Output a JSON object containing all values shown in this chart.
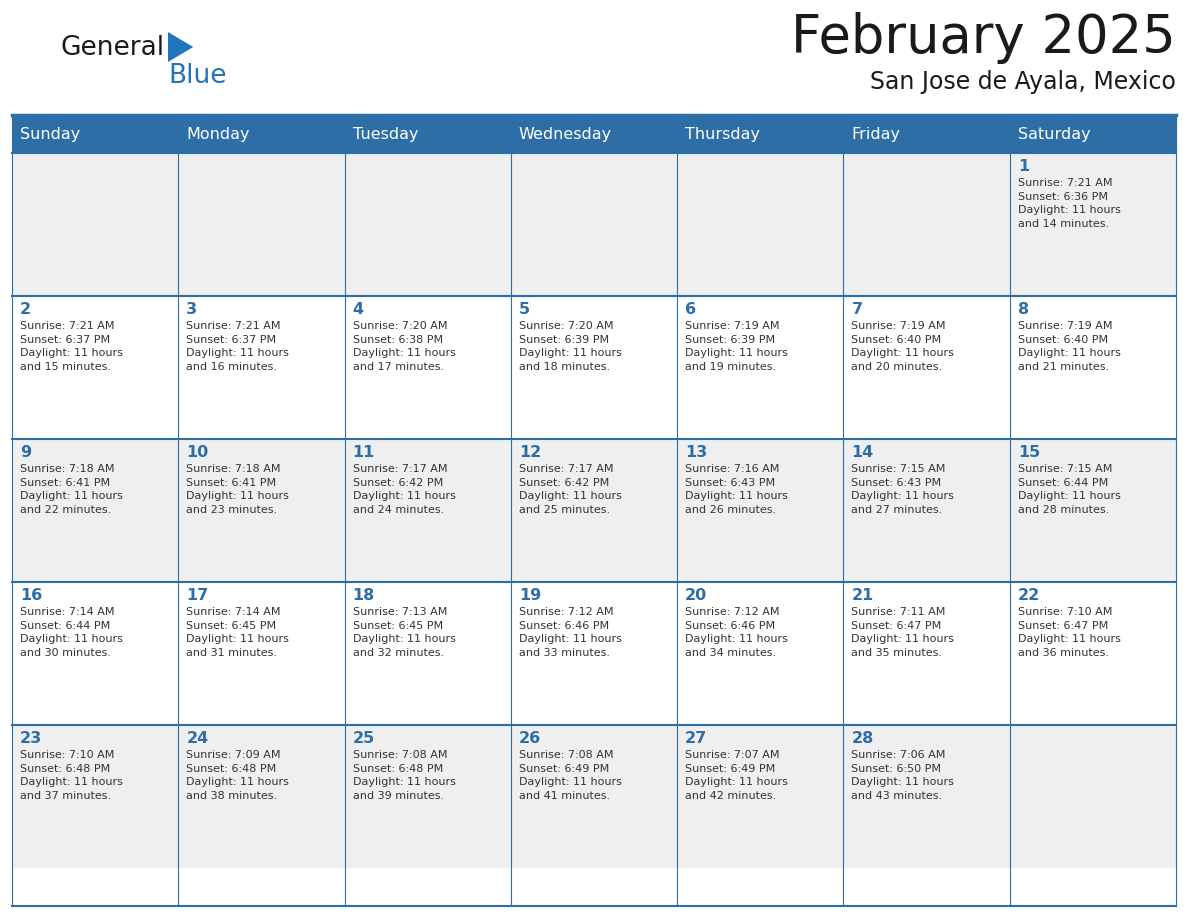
{
  "title": "February 2025",
  "subtitle": "San Jose de Ayala, Mexico",
  "header_bg_color": "#2E6EA6",
  "header_text_color": "#FFFFFF",
  "cell_bg_odd": "#EFEFEF",
  "cell_bg_even": "#FFFFFF",
  "day_number_color": "#2E6EA6",
  "cell_text_color": "#333333",
  "grid_line_color": "#2E6EA6",
  "days_of_week": [
    "Sunday",
    "Monday",
    "Tuesday",
    "Wednesday",
    "Thursday",
    "Friday",
    "Saturday"
  ],
  "weeks": [
    [
      {
        "day": 0,
        "text": ""
      },
      {
        "day": 0,
        "text": ""
      },
      {
        "day": 0,
        "text": ""
      },
      {
        "day": 0,
        "text": ""
      },
      {
        "day": 0,
        "text": ""
      },
      {
        "day": 0,
        "text": ""
      },
      {
        "day": 1,
        "text": "Sunrise: 7:21 AM\nSunset: 6:36 PM\nDaylight: 11 hours\nand 14 minutes."
      }
    ],
    [
      {
        "day": 2,
        "text": "Sunrise: 7:21 AM\nSunset: 6:37 PM\nDaylight: 11 hours\nand 15 minutes."
      },
      {
        "day": 3,
        "text": "Sunrise: 7:21 AM\nSunset: 6:37 PM\nDaylight: 11 hours\nand 16 minutes."
      },
      {
        "day": 4,
        "text": "Sunrise: 7:20 AM\nSunset: 6:38 PM\nDaylight: 11 hours\nand 17 minutes."
      },
      {
        "day": 5,
        "text": "Sunrise: 7:20 AM\nSunset: 6:39 PM\nDaylight: 11 hours\nand 18 minutes."
      },
      {
        "day": 6,
        "text": "Sunrise: 7:19 AM\nSunset: 6:39 PM\nDaylight: 11 hours\nand 19 minutes."
      },
      {
        "day": 7,
        "text": "Sunrise: 7:19 AM\nSunset: 6:40 PM\nDaylight: 11 hours\nand 20 minutes."
      },
      {
        "day": 8,
        "text": "Sunrise: 7:19 AM\nSunset: 6:40 PM\nDaylight: 11 hours\nand 21 minutes."
      }
    ],
    [
      {
        "day": 9,
        "text": "Sunrise: 7:18 AM\nSunset: 6:41 PM\nDaylight: 11 hours\nand 22 minutes."
      },
      {
        "day": 10,
        "text": "Sunrise: 7:18 AM\nSunset: 6:41 PM\nDaylight: 11 hours\nand 23 minutes."
      },
      {
        "day": 11,
        "text": "Sunrise: 7:17 AM\nSunset: 6:42 PM\nDaylight: 11 hours\nand 24 minutes."
      },
      {
        "day": 12,
        "text": "Sunrise: 7:17 AM\nSunset: 6:42 PM\nDaylight: 11 hours\nand 25 minutes."
      },
      {
        "day": 13,
        "text": "Sunrise: 7:16 AM\nSunset: 6:43 PM\nDaylight: 11 hours\nand 26 minutes."
      },
      {
        "day": 14,
        "text": "Sunrise: 7:15 AM\nSunset: 6:43 PM\nDaylight: 11 hours\nand 27 minutes."
      },
      {
        "day": 15,
        "text": "Sunrise: 7:15 AM\nSunset: 6:44 PM\nDaylight: 11 hours\nand 28 minutes."
      }
    ],
    [
      {
        "day": 16,
        "text": "Sunrise: 7:14 AM\nSunset: 6:44 PM\nDaylight: 11 hours\nand 30 minutes."
      },
      {
        "day": 17,
        "text": "Sunrise: 7:14 AM\nSunset: 6:45 PM\nDaylight: 11 hours\nand 31 minutes."
      },
      {
        "day": 18,
        "text": "Sunrise: 7:13 AM\nSunset: 6:45 PM\nDaylight: 11 hours\nand 32 minutes."
      },
      {
        "day": 19,
        "text": "Sunrise: 7:12 AM\nSunset: 6:46 PM\nDaylight: 11 hours\nand 33 minutes."
      },
      {
        "day": 20,
        "text": "Sunrise: 7:12 AM\nSunset: 6:46 PM\nDaylight: 11 hours\nand 34 minutes."
      },
      {
        "day": 21,
        "text": "Sunrise: 7:11 AM\nSunset: 6:47 PM\nDaylight: 11 hours\nand 35 minutes."
      },
      {
        "day": 22,
        "text": "Sunrise: 7:10 AM\nSunset: 6:47 PM\nDaylight: 11 hours\nand 36 minutes."
      }
    ],
    [
      {
        "day": 23,
        "text": "Sunrise: 7:10 AM\nSunset: 6:48 PM\nDaylight: 11 hours\nand 37 minutes."
      },
      {
        "day": 24,
        "text": "Sunrise: 7:09 AM\nSunset: 6:48 PM\nDaylight: 11 hours\nand 38 minutes."
      },
      {
        "day": 25,
        "text": "Sunrise: 7:08 AM\nSunset: 6:48 PM\nDaylight: 11 hours\nand 39 minutes."
      },
      {
        "day": 26,
        "text": "Sunrise: 7:08 AM\nSunset: 6:49 PM\nDaylight: 11 hours\nand 41 minutes."
      },
      {
        "day": 27,
        "text": "Sunrise: 7:07 AM\nSunset: 6:49 PM\nDaylight: 11 hours\nand 42 minutes."
      },
      {
        "day": 28,
        "text": "Sunrise: 7:06 AM\nSunset: 6:50 PM\nDaylight: 11 hours\nand 43 minutes."
      },
      {
        "day": 0,
        "text": ""
      }
    ]
  ],
  "logo_general_color": "#1a1a1a",
  "logo_blue_color": "#2175BC",
  "logo_triangle_color": "#2175BC",
  "fig_width": 11.88,
  "fig_height": 9.18,
  "dpi": 100
}
